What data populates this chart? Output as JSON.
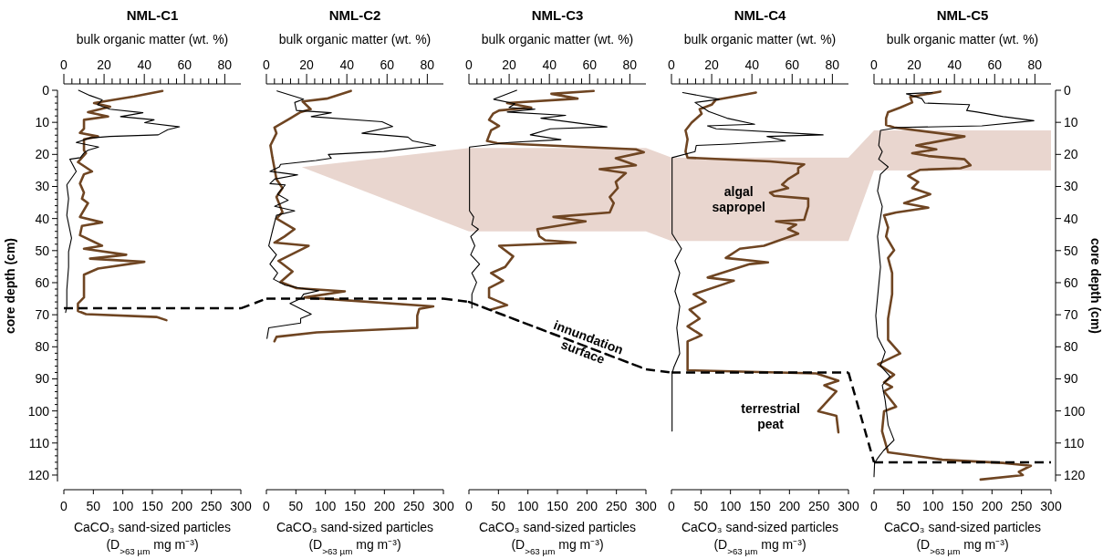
{
  "chart_data": [
    {
      "type": "line",
      "title": "NML-C1",
      "x2label": "bulk organic matter (wt. %)",
      "xlabel": "CaCO₃ sand-sized particles (D$_{>63 µm}$ mg m⁻³)",
      "ylabel": "core depth (cm)",
      "xlim": [
        0,
        300
      ],
      "xticks": [
        0,
        50,
        100,
        150,
        200,
        250,
        300
      ],
      "x2lim": [
        0,
        88
      ],
      "x2ticks": [
        0,
        {
          "value": 4,
          "label": null
        },
        {
          "value": 8,
          "label": null
        },
        {
          "value": 12,
          "label": null
        },
        {
          "value": 16,
          "label": null
        },
        20,
        {
          "value": 24,
          "label": null
        },
        {
          "value": 28,
          "label": null
        },
        {
          "value": 32,
          "label": null
        },
        {
          "value": 36,
          "label": null
        },
        40,
        {
          "value": 44,
          "label": null
        },
        {
          "value": 48,
          "label": null
        },
        {
          "value": 52,
          "label": null
        },
        {
          "value": 56,
          "label": null
        },
        60,
        {
          "value": 64,
          "label": null
        },
        {
          "value": 68,
          "label": null
        },
        {
          "value": 72,
          "label": null
        },
        {
          "value": 76,
          "label": null
        },
        80
      ],
      "ylim": [
        122,
        0
      ],
      "yticks": [
        0,
        {
          "value": 2,
          "label": null
        },
        {
          "value": 4,
          "label": null
        },
        {
          "value": 6,
          "label": null
        },
        {
          "value": 8,
          "label": null
        },
        10,
        {
          "value": 12,
          "label": null
        },
        {
          "value": 14,
          "label": null
        },
        {
          "value": 16,
          "label": null
        },
        {
          "value": 18,
          "label": null
        },
        20,
        {
          "value": 22,
          "label": null
        },
        {
          "value": 24,
          "label": null
        },
        {
          "value": 26,
          "label": null
        },
        {
          "value": 28,
          "label": null
        },
        30,
        {
          "value": 32,
          "label": null
        },
        {
          "value": 34,
          "label": null
        },
        {
          "value": 36,
          "label": null
        },
        {
          "value": 38,
          "label": null
        },
        40,
        {
          "value": 42,
          "label": null
        },
        {
          "value": 44,
          "label": null
        },
        {
          "value": 46,
          "label": null
        },
        {
          "value": 48,
          "label": null
        },
        50,
        {
          "value": 52,
          "label": null
        },
        {
          "value": 54,
          "label": null
        },
        {
          "value": 56,
          "label": null
        },
        {
          "value": 58,
          "label": null
        },
        60,
        {
          "value": 62,
          "label": null
        },
        {
          "value": 64,
          "label": null
        },
        {
          "value": 66,
          "label": null
        },
        {
          "value": 68,
          "label": null
        },
        70,
        {
          "value": 72,
          "label": null
        },
        {
          "value": 74,
          "label": null
        },
        {
          "value": 76,
          "label": null
        },
        {
          "value": 78,
          "label": null
        },
        80,
        {
          "value": 82,
          "label": null
        },
        {
          "value": 84,
          "label": null
        },
        {
          "value": 86,
          "label": null
        },
        {
          "value": 88,
          "label": null
        },
        90,
        {
          "value": 92,
          "label": null
        },
        {
          "value": 94,
          "label": null
        },
        {
          "value": 96,
          "label": null
        },
        {
          "value": 98,
          "label": null
        },
        100,
        {
          "value": 102,
          "label": null
        },
        {
          "value": 104,
          "label": null
        },
        {
          "value": 106,
          "label": null
        },
        {
          "value": 108,
          "label": null
        },
        110,
        {
          "value": 112,
          "label": null
        },
        {
          "value": 114,
          "label": null
        },
        {
          "value": 116,
          "label": null
        },
        {
          "value": 118,
          "label": null
        },
        120
      ],
      "ref_lines": [
        {
          "axis": "y",
          "value": 68,
          "line_style": "dashed",
          "color": "#000000"
        }
      ],
      "series": [
        {
          "color": "#6f4522",
          "axis": "x2",
          "x": [
            49,
            35,
            15,
            23,
            12,
            22,
            10,
            10,
            8,
            17,
            10,
            10,
            11,
            7,
            14,
            10,
            8,
            10,
            9,
            12,
            8,
            19,
            9,
            8,
            19,
            10,
            31,
            13,
            40,
            17,
            10,
            10,
            10,
            7,
            7,
            7,
            11,
            46,
            51
          ],
          "values": [
            0.2,
            1.9,
            4,
            5.1,
            6.8,
            8.2,
            9.2,
            12,
            13.3,
            14.4,
            15.3,
            18.7,
            19.6,
            22.4,
            25.3,
            26.2,
            29.1,
            31.9,
            33.8,
            35.2,
            39.5,
            41.2,
            42.3,
            45.2,
            48.5,
            49.4,
            51.3,
            52.5,
            53.5,
            55.6,
            57.5,
            60.8,
            64.6,
            66.5,
            67.9,
            68.8,
            69.8,
            70.7,
            71.7
          ]
        },
        {
          "color": "#000000",
          "x": [
            25,
            44,
            65,
            57,
            78,
            134,
            96,
            153,
            137,
            196,
            176,
            160,
            78,
            44,
            21,
            59,
            41,
            34,
            28,
            10,
            21,
            5,
            8,
            5,
            13,
            8,
            8,
            5,
            5,
            3
          ],
          "values": [
            0,
            1.6,
            3,
            4.5,
            5.9,
            7,
            8.2,
            9.2,
            10.1,
            11.4,
            12.3,
            13.9,
            14.4,
            14.9,
            16.3,
            17.7,
            18.7,
            19.6,
            21,
            21.5,
            25.3,
            29.5,
            33.8,
            39,
            46.1,
            50.4,
            55.1,
            62.2,
            67.4,
            69.3
          ]
        }
      ]
    },
    {
      "type": "line",
      "title": "NML-C2",
      "x2label": "bulk organic matter (wt. %)",
      "xlabel": "CaCO₃ sand-sized particles (D$_{>63 µm}$ mg m⁻³)",
      "tick_labels": "x",
      "xlim": [
        0,
        300
      ],
      "xticks": [
        0,
        50,
        100,
        150,
        200,
        250,
        300
      ],
      "x2lim": [
        0,
        88
      ],
      "x2ticks": [
        0,
        {
          "value": 4,
          "label": null
        },
        {
          "value": 8,
          "label": null
        },
        {
          "value": 12,
          "label": null
        },
        {
          "value": 16,
          "label": null
        },
        20,
        {
          "value": 24,
          "label": null
        },
        {
          "value": 28,
          "label": null
        },
        {
          "value": 32,
          "label": null
        },
        {
          "value": 36,
          "label": null
        },
        40,
        {
          "value": 44,
          "label": null
        },
        {
          "value": 48,
          "label": null
        },
        {
          "value": 52,
          "label": null
        },
        {
          "value": 56,
          "label": null
        },
        60,
        {
          "value": 64,
          "label": null
        },
        {
          "value": 68,
          "label": null
        },
        {
          "value": 72,
          "label": null
        },
        {
          "value": 76,
          "label": null
        },
        80
      ],
      "ylim": [
        120,
        0
      ],
      "yticks": [
        0,
        10,
        20,
        30,
        40,
        50,
        60,
        70,
        80,
        90,
        100,
        110,
        120
      ],
      "ref_lines": [
        {
          "axis": "y",
          "value": 65,
          "line_style": "dashed",
          "color": "#000000"
        }
      ],
      "series": [
        {
          "color": "#6f4522",
          "axis": "x2",
          "x": [
            42,
            30,
            18,
            20,
            22,
            17,
            12,
            4,
            5,
            2,
            3,
            4,
            5,
            8,
            5,
            8,
            5,
            14,
            9,
            4,
            21,
            6,
            13,
            7,
            15,
            39,
            19,
            83,
            76,
            75,
            75,
            25,
            5,
            4
          ],
          "values": [
            0.2,
            2.6,
            3.5,
            4.7,
            5.9,
            6.8,
            8.7,
            11.6,
            13.4,
            17.2,
            21,
            24.3,
            27.7,
            30.5,
            33.3,
            38,
            40,
            43.3,
            45.6,
            47.5,
            48.5,
            53.2,
            56.5,
            59.8,
            61.7,
            62.7,
            64.6,
            67.4,
            68.2,
            70.3,
            74.1,
            75.5,
            76.9,
            78.3
          ]
        },
        {
          "color": "#000000",
          "x": [
            18,
            63,
            48,
            51,
            110,
            76,
            196,
            214,
            162,
            240,
            248,
            287,
            199,
            105,
            110,
            84,
            24,
            22,
            6,
            24,
            53,
            14,
            6,
            32,
            19,
            37,
            14,
            48,
            17,
            11,
            4,
            17,
            6,
            19,
            12,
            32,
            58,
            89,
            63,
            58,
            40,
            76,
            58,
            58,
            4,
            1
          ],
          "values": [
            0.2,
            2.8,
            3.8,
            6.3,
            7,
            8.2,
            9.8,
            11.3,
            13.4,
            14.6,
            15.8,
            17.2,
            19.1,
            20,
            21.2,
            21.9,
            23.1,
            23.9,
            25.3,
            25.7,
            26.4,
            27.7,
            29.1,
            29.5,
            32.4,
            34.3,
            36.2,
            37.6,
            39,
            43.3,
            48.5,
            51.3,
            54.2,
            57,
            58.9,
            60.8,
            61.7,
            62.5,
            63.6,
            65,
            66.5,
            69.8,
            71.2,
            72.6,
            74.1,
            77.4
          ]
        }
      ]
    },
    {
      "type": "line",
      "title": "NML-C3",
      "x2label": "bulk organic matter (wt. %)",
      "xlabel": "CaCO₃ sand-sized particles (D$_{>63 µm}$ mg m⁻³)",
      "tick_labels": "x",
      "xlim": [
        0,
        300
      ],
      "xticks": [
        0,
        50,
        100,
        150,
        200,
        250,
        300
      ],
      "x2lim": [
        0,
        88
      ],
      "x2ticks": [
        0,
        {
          "value": 4,
          "label": null
        },
        {
          "value": 8,
          "label": null
        },
        {
          "value": 12,
          "label": null
        },
        {
          "value": 16,
          "label": null
        },
        20,
        {
          "value": 24,
          "label": null
        },
        {
          "value": 28,
          "label": null
        },
        {
          "value": 32,
          "label": null
        },
        {
          "value": 36,
          "label": null
        },
        40,
        {
          "value": 44,
          "label": null
        },
        {
          "value": 48,
          "label": null
        },
        {
          "value": 52,
          "label": null
        },
        {
          "value": 56,
          "label": null
        },
        60,
        {
          "value": 64,
          "label": null
        },
        {
          "value": 68,
          "label": null
        },
        {
          "value": 72,
          "label": null
        },
        {
          "value": 76,
          "label": null
        },
        80
      ],
      "ylim": [
        120,
        0
      ],
      "yticks": [
        0,
        10,
        20,
        30,
        40,
        50,
        60,
        70,
        80,
        90,
        100,
        110,
        120
      ],
      "bands": [
        {
          "axis": "y",
          "from": 18,
          "to": 44,
          "color": "#e9d6cf"
        }
      ],
      "annotations": [
        "innundation surface"
      ],
      "series": [
        {
          "color": "#6f4522",
          "axis": "x2",
          "x": [
            62,
            41,
            54,
            19,
            31,
            15,
            12,
            10,
            15,
            11,
            9,
            14,
            83,
            87,
            73,
            83,
            65,
            78,
            73,
            74,
            70,
            72,
            70,
            42,
            58,
            34,
            35,
            38,
            53,
            15,
            22,
            18,
            11,
            17,
            10,
            10,
            19,
            11
          ],
          "values": [
            0.2,
            1.1,
            2.6,
            4,
            5.4,
            6.3,
            7.3,
            9.2,
            11.1,
            12.5,
            15.8,
            16.5,
            18.4,
            19.3,
            21.2,
            23.4,
            24.6,
            25.8,
            28.6,
            30.5,
            33.3,
            35.2,
            38.1,
            39.5,
            40.9,
            43.3,
            45.5,
            46.8,
            47.5,
            48.5,
            51.8,
            55.1,
            57,
            59.4,
            61.7,
            64.6,
            67,
            68.4
          ]
        },
        {
          "color": "#000000",
          "x": [
            81,
            42,
            78,
            68,
            112,
            65,
            164,
            122,
            234,
            138,
            104,
            156,
            68,
            1,
            1,
            1,
            8,
            5,
            16,
            3,
            10,
            3,
            18,
            5,
            13,
            5,
            5
          ],
          "values": [
            0,
            2.8,
            4.2,
            5.4,
            5.9,
            6.8,
            7.8,
            8.7,
            11.4,
            12,
            13.9,
            15.4,
            16.3,
            17.7,
            19.1,
            37.6,
            39.5,
            41.9,
            43.3,
            45.6,
            48.5,
            51.3,
            54.2,
            57,
            59.9,
            63.6,
            67.9
          ]
        },
        {
          "color": "#000000",
          "line_style": "dashed",
          "x": [
            0,
            300
          ],
          "values": [
            66,
            87
          ]
        }
      ]
    },
    {
      "type": "line",
      "title": "NML-C4",
      "x2label": "bulk organic matter (wt. %)",
      "xlabel": "CaCO₃ sand-sized particles (D$_{>63 µm}$ mg m⁻³)",
      "tick_labels": "x",
      "xlim": [
        0,
        300
      ],
      "xticks": [
        0,
        50,
        100,
        150,
        200,
        250,
        300
      ],
      "x2lim": [
        0,
        88
      ],
      "x2ticks": [
        0,
        {
          "value": 4,
          "label": null
        },
        {
          "value": 8,
          "label": null
        },
        {
          "value": 12,
          "label": null
        },
        {
          "value": 16,
          "label": null
        },
        20,
        {
          "value": 24,
          "label": null
        },
        {
          "value": 28,
          "label": null
        },
        {
          "value": 32,
          "label": null
        },
        {
          "value": 36,
          "label": null
        },
        40,
        {
          "value": 44,
          "label": null
        },
        {
          "value": 48,
          "label": null
        },
        {
          "value": 52,
          "label": null
        },
        {
          "value": 56,
          "label": null
        },
        60,
        {
          "value": 64,
          "label": null
        },
        {
          "value": 68,
          "label": null
        },
        {
          "value": 72,
          "label": null
        },
        {
          "value": 76,
          "label": null
        },
        80
      ],
      "ylim": [
        120,
        0
      ],
      "yticks": [
        0,
        10,
        20,
        30,
        40,
        50,
        60,
        70,
        80,
        90,
        100,
        110,
        120
      ],
      "bands": [
        {
          "axis": "y",
          "from": 21,
          "to": 47,
          "color": "#e9d6cf",
          "label": "algal sapropel"
        }
      ],
      "ref_lines": [
        {
          "axis": "y",
          "value": 88,
          "line_style": "dashed",
          "color": "#000000"
        }
      ],
      "annotations": [
        "terrestrial peat"
      ],
      "series": [
        {
          "color": "#6f4522",
          "axis": "x2",
          "x": [
            42,
            22,
            20,
            14,
            15,
            10,
            7,
            8,
            7,
            8,
            49,
            66,
            63,
            63,
            58,
            55,
            58,
            49,
            51,
            68,
            68,
            66,
            52,
            62,
            58,
            63,
            46,
            34,
            27,
            48,
            39,
            18,
            31,
            11,
            17,
            9,
            14,
            8,
            15,
            8,
            8,
            72,
            83,
            76,
            82,
            73,
            82,
            83
          ],
          "values": [
            0.7,
            3,
            4.5,
            5.9,
            7.3,
            10.1,
            12.5,
            15.3,
            19.1,
            21,
            22.2,
            23.1,
            24.3,
            25.8,
            27.7,
            29.4,
            30.5,
            31.9,
            32.9,
            33.8,
            36.2,
            40.4,
            40.9,
            41.9,
            43.3,
            44.7,
            48.5,
            49.4,
            52.3,
            53.7,
            54.2,
            58.4,
            59.4,
            63.6,
            66,
            68.4,
            71.2,
            73.6,
            76.4,
            78.3,
            87.3,
            88.3,
            90.6,
            92,
            93.9,
            100.1,
            101.5,
            106.7
          ]
        },
        {
          "color": "#000000",
          "x": [
            19,
            81,
            40,
            63,
            94,
            141,
            61,
            76,
            257,
            162,
            193,
            99,
            42,
            40,
            1,
            1,
            17,
            6,
            14,
            6,
            14,
            9,
            14,
            4,
            1,
            1
          ],
          "values": [
            0.7,
            2.8,
            3.8,
            6.6,
            8.7,
            10.6,
            11.1,
            12,
            13.9,
            14.4,
            15.8,
            16.8,
            17.2,
            19.1,
            21,
            44.7,
            49.4,
            53.2,
            57,
            62.7,
            67.4,
            74.1,
            82.1,
            86.4,
            88.3,
            106.3
          ]
        }
      ]
    },
    {
      "type": "line",
      "title": "NML-C5",
      "x2label": "bulk organic matter (wt. %)",
      "xlabel": "CaCO₃ sand-sized particles (D$_{>63 µm}$ mg m⁻³)",
      "ylabel": "core depth (cm)",
      "xlim": [
        0,
        300
      ],
      "xticks": [
        0,
        50,
        100,
        150,
        200,
        250,
        300
      ],
      "x2lim": [
        0,
        88
      ],
      "x2ticks": [
        0,
        {
          "value": 4,
          "label": null
        },
        {
          "value": 8,
          "label": null
        },
        {
          "value": 12,
          "label": null
        },
        {
          "value": 16,
          "label": null
        },
        20,
        {
          "value": 24,
          "label": null
        },
        {
          "value": 28,
          "label": null
        },
        {
          "value": 32,
          "label": null
        },
        {
          "value": 36,
          "label": null
        },
        40,
        {
          "value": 44,
          "label": null
        },
        {
          "value": 48,
          "label": null
        },
        {
          "value": 52,
          "label": null
        },
        {
          "value": 56,
          "label": null
        },
        60,
        {
          "value": 64,
          "label": null
        },
        {
          "value": 68,
          "label": null
        },
        {
          "value": 72,
          "label": null
        },
        {
          "value": 76,
          "label": null
        },
        80
      ],
      "ylim": [
        122,
        0
      ],
      "yticks": [
        0,
        10,
        20,
        30,
        40,
        50,
        60,
        70,
        80,
        90,
        100,
        110,
        120
      ],
      "bands": [
        {
          "axis": "y",
          "from": 12.5,
          "to": 25,
          "color": "#e9d6cf"
        }
      ],
      "ref_lines": [
        {
          "axis": "y",
          "value": 116,
          "line_style": "dashed",
          "color": "#000000"
        }
      ],
      "series": [
        {
          "color": "#6f4522",
          "axis": "x2",
          "x": [
            33,
            18,
            19,
            13,
            7,
            6,
            6,
            10,
            45,
            21,
            31,
            19,
            27,
            45,
            48,
            43,
            23,
            17,
            22,
            19,
            28,
            15,
            27,
            11,
            5,
            7,
            6,
            10,
            7,
            9,
            9,
            7,
            7,
            13,
            2,
            10,
            5,
            9,
            5,
            11,
            5,
            4,
            7,
            34,
            64,
            78,
            72,
            74,
            53
          ],
          "values": [
            0.4,
            2.1,
            3.8,
            5.4,
            6.8,
            8.7,
            10.8,
            11.6,
            14.4,
            17.2,
            18.4,
            19.6,
            20.5,
            21.5,
            23.4,
            24.3,
            24.8,
            26.7,
            28.6,
            30.5,
            32.4,
            35.2,
            36.6,
            38.1,
            39,
            42.8,
            45.6,
            49.9,
            52.3,
            57,
            63.6,
            71.2,
            77.8,
            82.1,
            85.4,
            88.7,
            91.1,
            92.5,
            93.9,
            98.7,
            100.1,
            106.3,
            112.9,
            115.2,
            116.2,
            117.1,
            119,
            120,
            121.4
          ]
        },
        {
          "color": "#000000",
          "x": [
            99,
            55,
            81,
            86,
            162,
            157,
            175,
            219,
            271,
            183,
            42,
            11,
            8,
            14,
            8,
            24,
            11,
            6,
            14,
            6,
            11,
            6,
            3,
            6,
            19,
            11,
            27,
            14,
            19,
            24,
            34,
            16,
            6,
            1,
            0
          ],
          "values": [
            0.7,
            1.1,
            2.6,
            4,
            4.5,
            6.3,
            6.8,
            8.2,
            9.5,
            11.1,
            11.6,
            12.5,
            17.2,
            19.1,
            21.5,
            23.9,
            26.2,
            31.4,
            36.2,
            45.6,
            55.1,
            64.6,
            70.3,
            76.9,
            81.6,
            85.9,
            89.2,
            92,
            96.8,
            104.4,
            109.1,
            112.4,
            114.8,
            116.2,
            120.5
          ]
        }
      ]
    }
  ]
}
